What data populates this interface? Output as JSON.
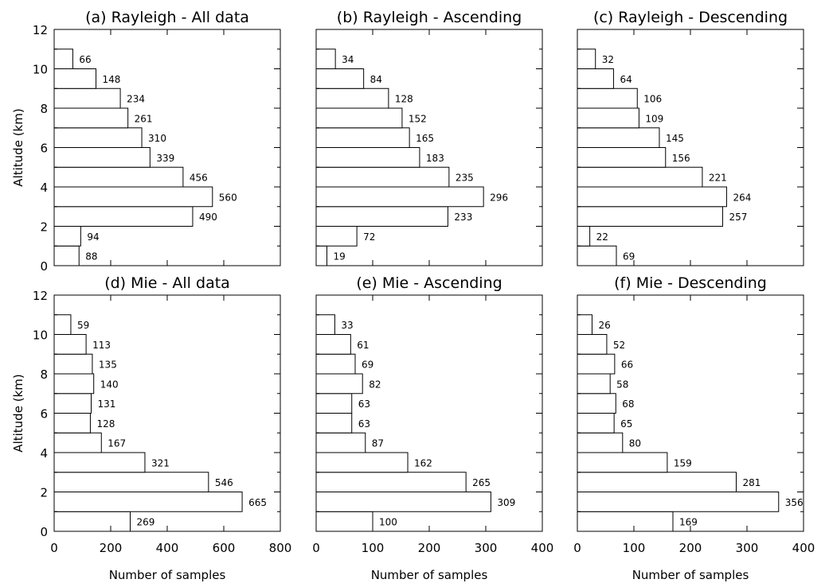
{
  "chart_data": [
    {
      "type": "bar",
      "orientation": "horizontal",
      "title": "(a) Rayleigh - All data",
      "categories": [
        "0-1",
        "1-2",
        "2-3",
        "3-4",
        "4-5",
        "5-6",
        "6-7",
        "7-8",
        "8-9",
        "9-10",
        "10-11"
      ],
      "values": [
        88,
        94,
        490,
        560,
        456,
        339,
        310,
        261,
        234,
        148,
        66
      ],
      "xlim": [
        0,
        800
      ],
      "xticks": [
        "0",
        "200",
        "400",
        "600",
        "800"
      ],
      "ylim": [
        0,
        12
      ],
      "yticks": [
        "0",
        "2",
        "4",
        "6",
        "8",
        "10",
        "12"
      ],
      "xlabel": "",
      "ylabel": "Altitude (km)"
    },
    {
      "type": "bar",
      "orientation": "horizontal",
      "title": "(b) Rayleigh - Ascending",
      "categories": [
        "0-1",
        "1-2",
        "2-3",
        "3-4",
        "4-5",
        "5-6",
        "6-7",
        "7-8",
        "8-9",
        "9-10",
        "10-11"
      ],
      "values": [
        19,
        72,
        233,
        296,
        235,
        183,
        165,
        152,
        128,
        84,
        34
      ],
      "xlim": [
        0,
        400
      ],
      "xticks": [
        "0",
        "100",
        "200",
        "300",
        "400"
      ],
      "ylim": [
        0,
        12
      ],
      "yticks": [],
      "xlabel": "",
      "ylabel": ""
    },
    {
      "type": "bar",
      "orientation": "horizontal",
      "title": "(c) Rayleigh - Descending",
      "categories": [
        "0-1",
        "1-2",
        "2-3",
        "3-4",
        "4-5",
        "5-6",
        "6-7",
        "7-8",
        "8-9",
        "9-10",
        "10-11"
      ],
      "values": [
        69,
        22,
        257,
        264,
        221,
        156,
        145,
        109,
        106,
        64,
        32
      ],
      "xlim": [
        0,
        400
      ],
      "xticks": [
        "0",
        "100",
        "200",
        "300",
        "400"
      ],
      "ylim": [
        0,
        12
      ],
      "yticks": [],
      "xlabel": "",
      "ylabel": ""
    },
    {
      "type": "bar",
      "orientation": "horizontal",
      "title": "(d) Mie - All data",
      "categories": [
        "0-1",
        "1-2",
        "2-3",
        "3-4",
        "4-5",
        "5-6",
        "6-7",
        "7-8",
        "8-9",
        "9-10",
        "10-11"
      ],
      "values": [
        269,
        665,
        546,
        321,
        167,
        128,
        131,
        140,
        135,
        113,
        59
      ],
      "xlim": [
        0,
        800
      ],
      "xticks": [
        "0",
        "200",
        "400",
        "600",
        "800"
      ],
      "ylim": [
        0,
        12
      ],
      "yticks": [
        "0",
        "2",
        "4",
        "6",
        "8",
        "10",
        "12"
      ],
      "xlabel": "Number of samples",
      "ylabel": "Altitude (km)"
    },
    {
      "type": "bar",
      "orientation": "horizontal",
      "title": "(e) Mie - Ascending",
      "categories": [
        "0-1",
        "1-2",
        "2-3",
        "3-4",
        "4-5",
        "5-6",
        "6-7",
        "7-8",
        "8-9",
        "9-10",
        "10-11"
      ],
      "values": [
        100,
        309,
        265,
        162,
        87,
        63,
        63,
        82,
        69,
        61,
        33
      ],
      "xlim": [
        0,
        400
      ],
      "xticks": [
        "0",
        "100",
        "200",
        "300",
        "400"
      ],
      "ylim": [
        0,
        12
      ],
      "yticks": [],
      "xlabel": "Number of samples",
      "ylabel": ""
    },
    {
      "type": "bar",
      "orientation": "horizontal",
      "title": "(f) Mie - Descending",
      "categories": [
        "0-1",
        "1-2",
        "2-3",
        "3-4",
        "4-5",
        "5-6",
        "6-7",
        "7-8",
        "8-9",
        "9-10",
        "10-11"
      ],
      "values": [
        169,
        356,
        281,
        159,
        80,
        65,
        68,
        58,
        66,
        52,
        26
      ],
      "xlim": [
        0,
        400
      ],
      "xticks": [
        "0",
        "100",
        "200",
        "300",
        "400"
      ],
      "ylim": [
        0,
        12
      ],
      "yticks": [],
      "xlabel": "Number of samples",
      "ylabel": ""
    }
  ]
}
